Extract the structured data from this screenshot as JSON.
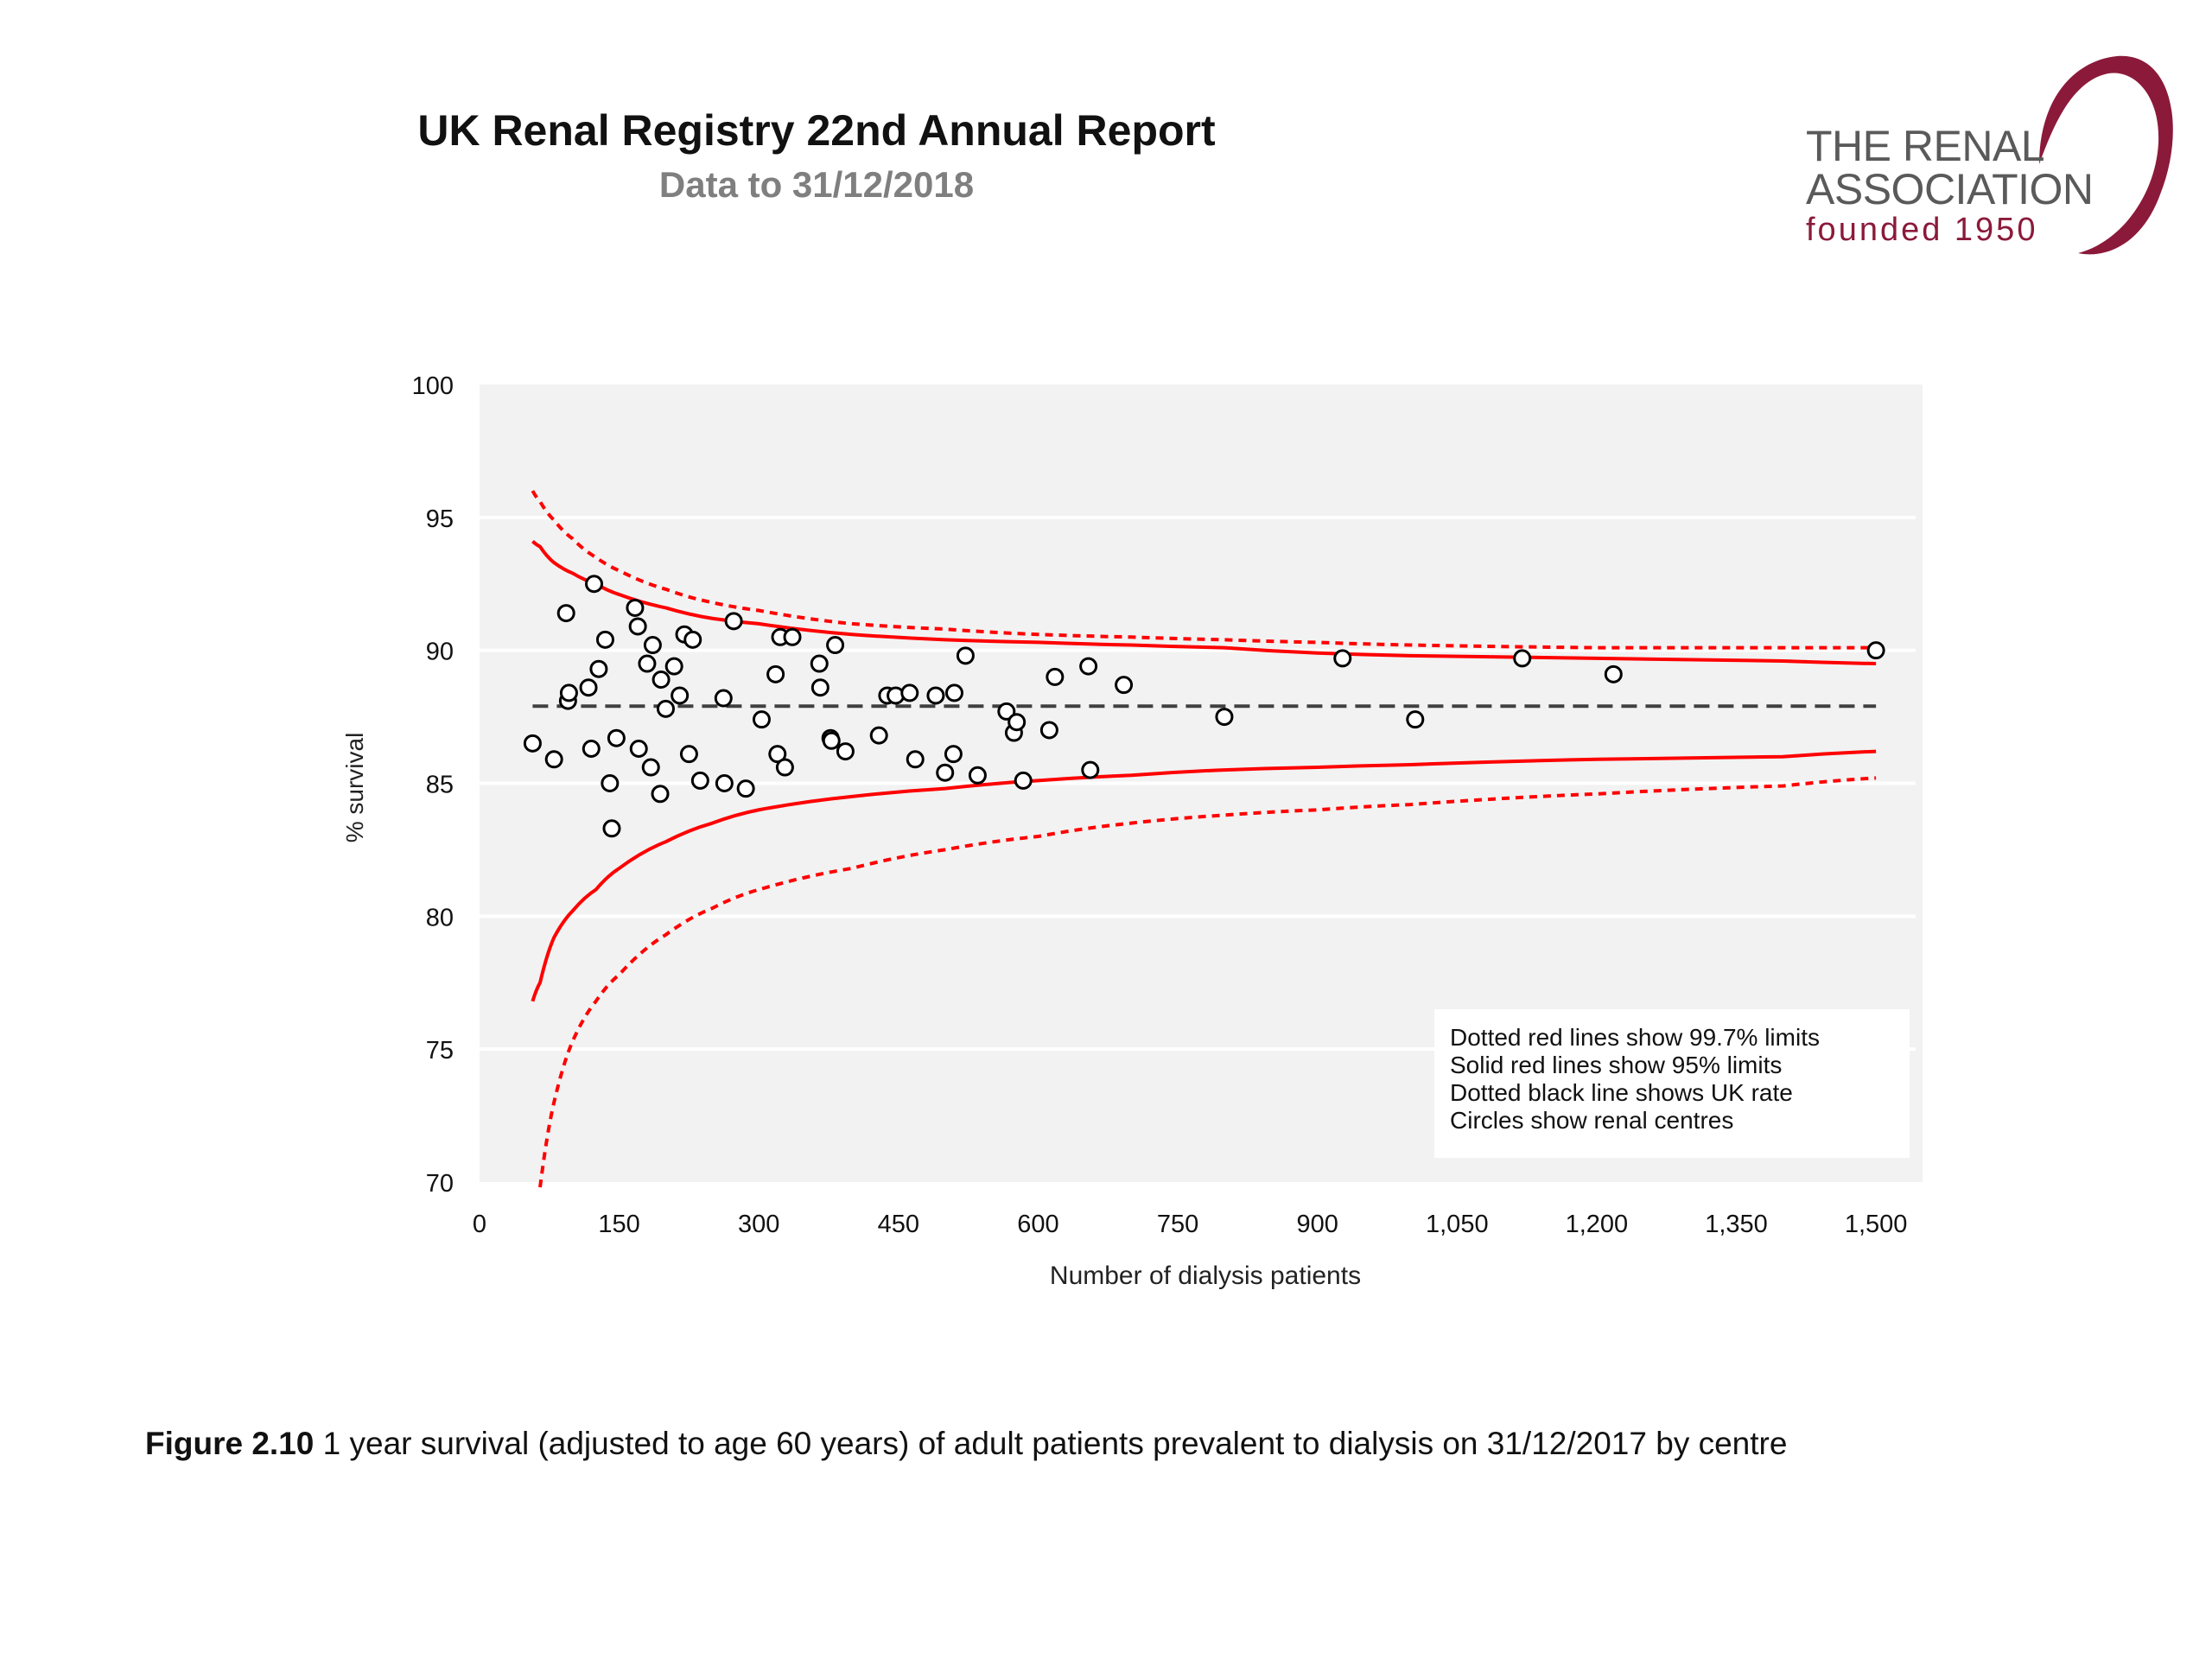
{
  "header": {
    "title": "UK Renal Registry 22nd Annual Report",
    "subtitle": "Data to 31/12/2018"
  },
  "logo": {
    "line1": "THE RENAL",
    "line2": "ASSOCIATION",
    "line3": "founded 1950",
    "text_color": "#5a5a5a",
    "accent_color": "#8b1a3a"
  },
  "caption": {
    "figure_label": "Figure 2.10",
    "text": " 1 year survival (adjusted to age 60 years) of adult patients prevalent to dialysis on 31/12/2017 by centre"
  },
  "chart_data": {
    "type": "scatter",
    "title": "",
    "xlabel": "Number  of dialysis patients",
    "ylabel": "% survival",
    "xlim": [
      0,
      1550
    ],
    "ylim": [
      70,
      100
    ],
    "x_ticks": [
      0,
      150,
      300,
      450,
      600,
      750,
      900,
      1050,
      1200,
      1350,
      1500
    ],
    "x_tick_labels": [
      "0",
      "150",
      "300",
      "450",
      "600",
      "750",
      "900",
      "1,050",
      "1,200",
      "1,350",
      "1,500"
    ],
    "y_ticks": [
      70,
      75,
      80,
      85,
      90,
      95,
      100
    ],
    "y_tick_labels": [
      "70",
      "75",
      "80",
      "85",
      "90",
      "95",
      "100"
    ],
    "grid": true,
    "background_color": "#f2f2f2",
    "uk_rate": 87.9,
    "legend_position": "bottom-right",
    "legend_lines": [
      "Dotted red lines show 99.7% limits",
      "Solid red lines show 95% limits",
      "Dotted black line shows UK rate",
      "Circles show renal centres"
    ],
    "limit_color": "#ff0000",
    "uk_rate_color": "#404040",
    "limits": {
      "x": [
        57,
        65,
        80,
        100,
        125,
        150,
        200,
        250,
        300,
        400,
        500,
        600,
        700,
        800,
        900,
        1000,
        1200,
        1400,
        1500
      ],
      "upper_99_7": [
        96.0,
        95.6,
        94.9,
        94.2,
        93.5,
        93.0,
        92.3,
        91.8,
        91.5,
        91.0,
        90.8,
        90.6,
        90.5,
        90.4,
        90.3,
        90.2,
        90.1,
        90.1,
        90.1
      ],
      "upper_95": [
        94.1,
        93.9,
        93.3,
        92.9,
        92.5,
        92.1,
        91.6,
        91.2,
        91.0,
        90.6,
        90.4,
        90.3,
        90.2,
        90.1,
        89.9,
        89.8,
        89.7,
        89.6,
        89.5
      ],
      "lower_95": [
        76.8,
        77.5,
        79.2,
        80.2,
        81.0,
        81.8,
        82.8,
        83.5,
        84.0,
        84.5,
        84.8,
        85.1,
        85.3,
        85.5,
        85.6,
        85.7,
        85.9,
        86.0,
        86.2
      ],
      "lower_99_7": [
        null,
        69.8,
        73.0,
        75.3,
        76.8,
        77.8,
        79.3,
        80.3,
        81.0,
        81.8,
        82.5,
        83.0,
        83.5,
        83.8,
        84.0,
        84.2,
        84.6,
        84.9,
        85.2
      ]
    },
    "points": [
      {
        "x": 57,
        "y": 86.5
      },
      {
        "x": 80,
        "y": 85.9
      },
      {
        "x": 93,
        "y": 91.4
      },
      {
        "x": 95,
        "y": 88.1
      },
      {
        "x": 96,
        "y": 88.4
      },
      {
        "x": 117,
        "y": 88.6
      },
      {
        "x": 120,
        "y": 86.3
      },
      {
        "x": 123,
        "y": 92.5
      },
      {
        "x": 128,
        "y": 89.3
      },
      {
        "x": 135,
        "y": 90.4
      },
      {
        "x": 140,
        "y": 85.0
      },
      {
        "x": 142,
        "y": 83.3
      },
      {
        "x": 147,
        "y": 86.7
      },
      {
        "x": 167,
        "y": 91.6
      },
      {
        "x": 170,
        "y": 90.9
      },
      {
        "x": 171,
        "y": 86.3
      },
      {
        "x": 180,
        "y": 89.5
      },
      {
        "x": 184,
        "y": 85.6
      },
      {
        "x": 186,
        "y": 90.2
      },
      {
        "x": 194,
        "y": 84.6
      },
      {
        "x": 195,
        "y": 88.9
      },
      {
        "x": 200,
        "y": 87.8
      },
      {
        "x": 209,
        "y": 89.4
      },
      {
        "x": 215,
        "y": 88.3
      },
      {
        "x": 220,
        "y": 90.6
      },
      {
        "x": 225,
        "y": 86.1
      },
      {
        "x": 229,
        "y": 90.4
      },
      {
        "x": 237,
        "y": 85.1
      },
      {
        "x": 262,
        "y": 88.2
      },
      {
        "x": 263,
        "y": 85.0
      },
      {
        "x": 273,
        "y": 91.1
      },
      {
        "x": 286,
        "y": 84.8
      },
      {
        "x": 303,
        "y": 87.4
      },
      {
        "x": 318,
        "y": 89.1
      },
      {
        "x": 320,
        "y": 86.1
      },
      {
        "x": 323,
        "y": 90.5
      },
      {
        "x": 328,
        "y": 85.6
      },
      {
        "x": 336,
        "y": 90.5
      },
      {
        "x": 365,
        "y": 89.5
      },
      {
        "x": 366,
        "y": 88.6
      },
      {
        "x": 377,
        "y": 86.7
      },
      {
        "x": 378,
        "y": 86.6
      },
      {
        "x": 382,
        "y": 90.2
      },
      {
        "x": 393,
        "y": 86.2
      },
      {
        "x": 429,
        "y": 86.8
      },
      {
        "x": 438,
        "y": 88.3
      },
      {
        "x": 447,
        "y": 88.3
      },
      {
        "x": 462,
        "y": 88.4
      },
      {
        "x": 468,
        "y": 85.9
      },
      {
        "x": 490,
        "y": 88.3
      },
      {
        "x": 500,
        "y": 85.4
      },
      {
        "x": 509,
        "y": 86.1
      },
      {
        "x": 510,
        "y": 88.4
      },
      {
        "x": 522,
        "y": 89.8
      },
      {
        "x": 535,
        "y": 85.3
      },
      {
        "x": 566,
        "y": 87.7
      },
      {
        "x": 574,
        "y": 86.9
      },
      {
        "x": 577,
        "y": 87.3
      },
      {
        "x": 584,
        "y": 85.1
      },
      {
        "x": 612,
        "y": 87.0
      },
      {
        "x": 618,
        "y": 89.0
      },
      {
        "x": 654,
        "y": 89.4
      },
      {
        "x": 656,
        "y": 85.5
      },
      {
        "x": 692,
        "y": 88.7
      },
      {
        "x": 800,
        "y": 87.5
      },
      {
        "x": 927,
        "y": 89.7
      },
      {
        "x": 1005,
        "y": 87.4
      },
      {
        "x": 1120,
        "y": 89.7
      },
      {
        "x": 1218,
        "y": 89.1
      },
      {
        "x": 1500,
        "y": 90.0
      }
    ]
  }
}
